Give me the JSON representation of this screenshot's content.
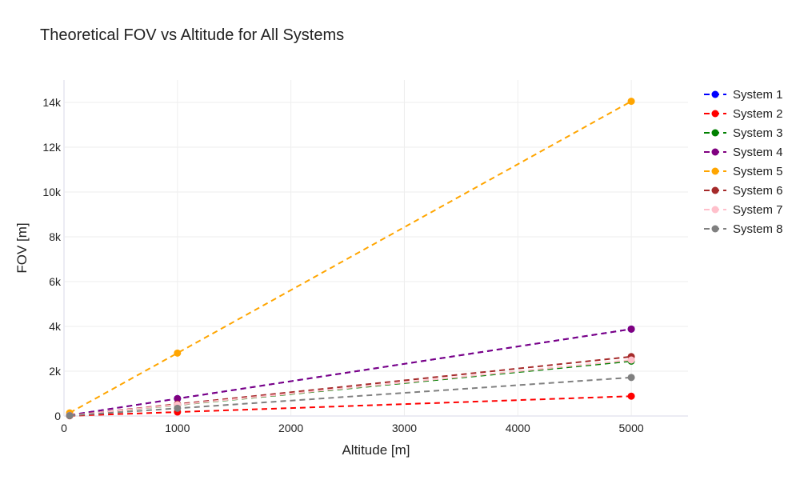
{
  "chart_data": {
    "type": "line",
    "title": "Theoretical FOV vs Altitude for All Systems",
    "xlabel": "Altitude [m]",
    "ylabel": "FOV [m]",
    "xlim": [
      0,
      5500
    ],
    "ylim": [
      0,
      15000
    ],
    "x_ticks": [
      0,
      1000,
      2000,
      3000,
      4000,
      5000
    ],
    "x_tick_labels": [
      "0",
      "1000",
      "2000",
      "3000",
      "4000",
      "5000"
    ],
    "y_ticks": [
      0,
      2000,
      4000,
      6000,
      8000,
      10000,
      12000,
      14000
    ],
    "y_tick_labels": [
      "0",
      "2k",
      "4k",
      "6k",
      "8k",
      "10k",
      "12k",
      "14k"
    ],
    "grid": true,
    "legend_position": "top-right",
    "line_style": "dashed",
    "x": [
      50,
      1000,
      5000
    ],
    "series": [
      {
        "name": "System 1",
        "color": "#0000ff",
        "values": [
          39,
          776,
          3880
        ]
      },
      {
        "name": "System 2",
        "color": "#ff0000",
        "values": [
          9,
          177,
          885
        ]
      },
      {
        "name": "System 3",
        "color": "#008000",
        "values": [
          25,
          490,
          2450
        ]
      },
      {
        "name": "System 4",
        "color": "#800080",
        "values": [
          39,
          776,
          3880
        ]
      },
      {
        "name": "System 5",
        "color": "#ffa500",
        "values": [
          140,
          2810,
          14050
        ]
      },
      {
        "name": "System 6",
        "color": "#a52a2a",
        "values": [
          27,
          530,
          2650
        ]
      },
      {
        "name": "System 7",
        "color": "#ffc0cb",
        "values": [
          25,
          500,
          2500
        ]
      },
      {
        "name": "System 8",
        "color": "#808080",
        "values": [
          17,
          344,
          1720
        ]
      }
    ]
  }
}
